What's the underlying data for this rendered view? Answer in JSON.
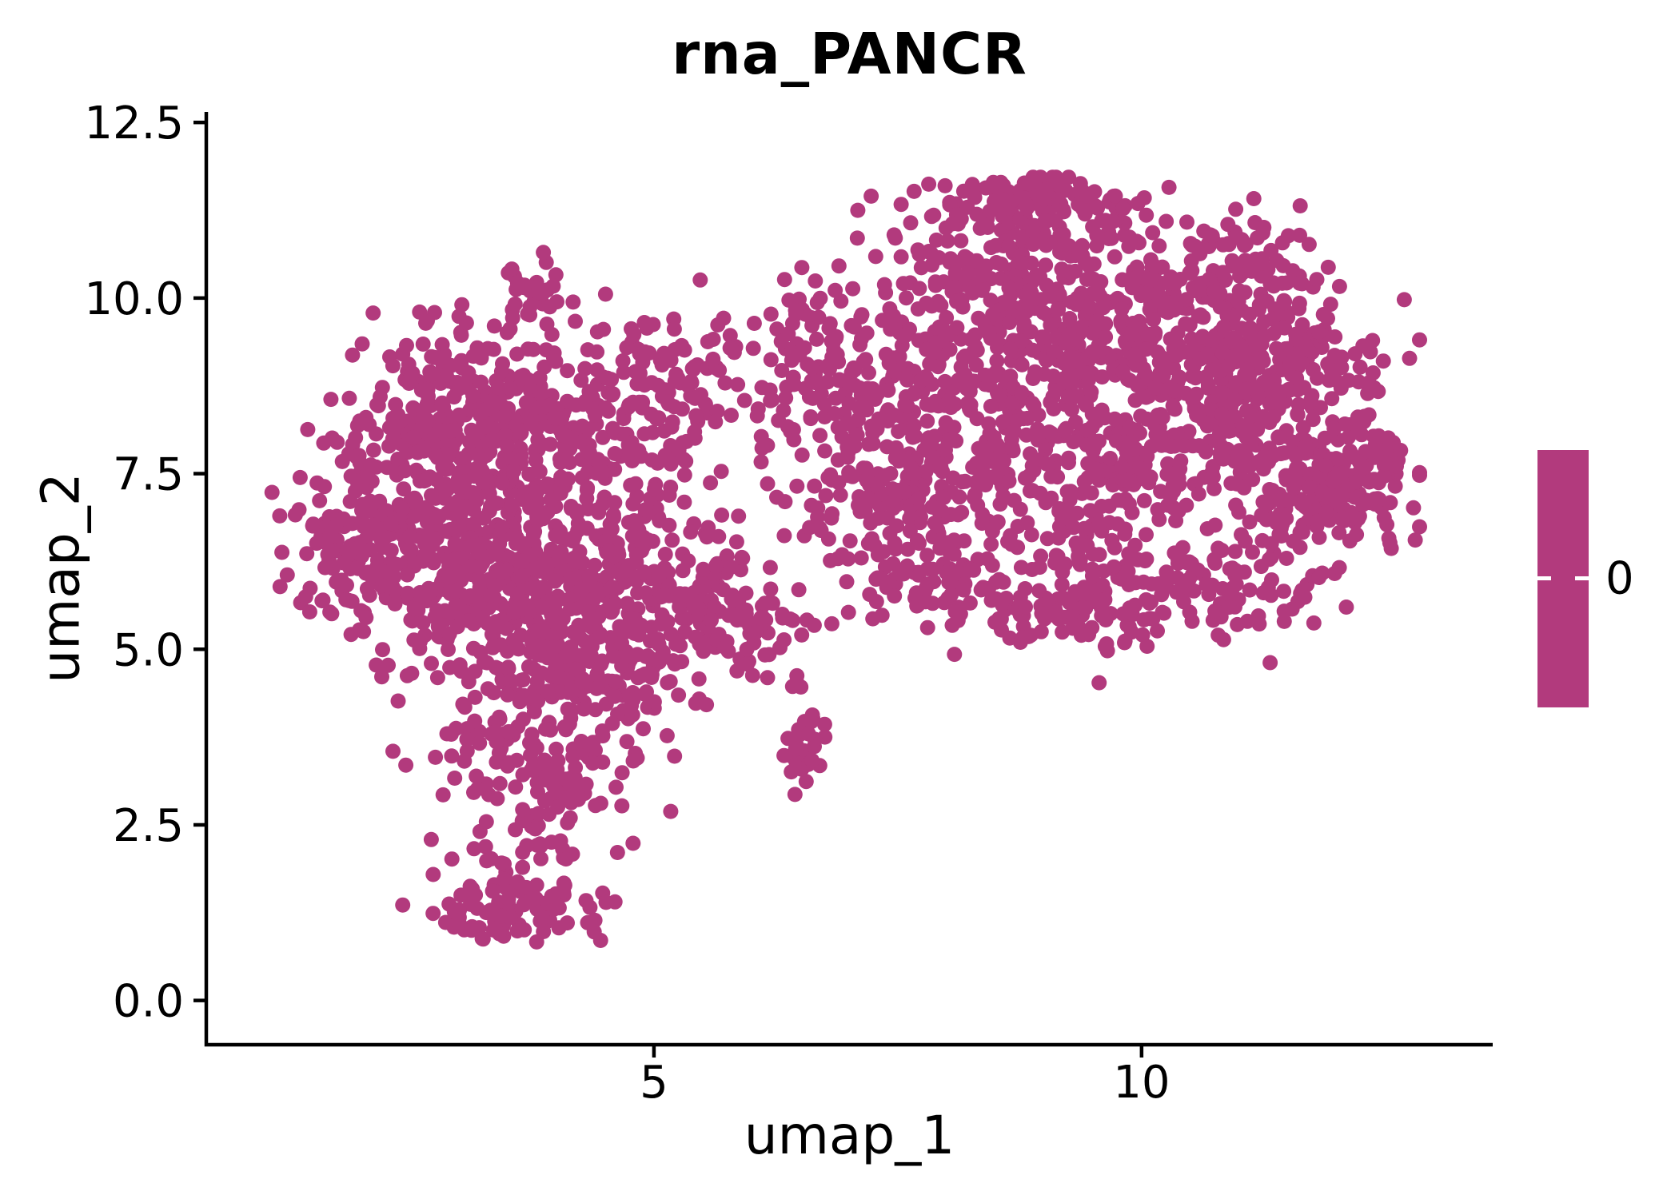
{
  "figure": {
    "title": "rna_PANCR",
    "background_color": "#FFFFFF",
    "text_color": "#000000"
  },
  "chart_data": {
    "type": "scatter",
    "title": "rna_PANCR",
    "xlabel": "umap_1",
    "ylabel": "umap_2",
    "xlim": [
      0.41,
      13.6
    ],
    "ylim": [
      -0.63,
      12.65
    ],
    "x_ticks": {
      "values": [
        5,
        10
      ],
      "labels": [
        "5",
        "10"
      ]
    },
    "y_ticks": {
      "values": [
        0,
        2.5,
        5,
        7.5,
        10,
        12.5
      ],
      "labels": [
        "0.0",
        "2.5",
        "5.0",
        "7.5",
        "10.0",
        "12.5"
      ]
    },
    "grid": false,
    "point_color": "#B23A7D",
    "point_radius_px": 9.5,
    "axis_color": "#000000",
    "n_points": 4085,
    "seed": 42,
    "clusters": [
      {
        "cx": 3.2,
        "cy": 8.6,
        "sx": 0.7,
        "sy": 0.6,
        "n": 230
      },
      {
        "cx": 2.55,
        "cy": 6.7,
        "sx": 0.65,
        "sy": 0.7,
        "n": 250
      },
      {
        "cx": 3.9,
        "cy": 7.7,
        "sx": 0.8,
        "sy": 0.75,
        "n": 240
      },
      {
        "cx": 4.5,
        "cy": 6.1,
        "sx": 0.7,
        "sy": 0.65,
        "n": 200
      },
      {
        "cx": 3.4,
        "cy": 5.7,
        "sx": 0.65,
        "sy": 0.6,
        "n": 220
      },
      {
        "cx": 4.35,
        "cy": 4.5,
        "sx": 0.6,
        "sy": 0.6,
        "n": 150
      },
      {
        "cx": 3.7,
        "cy": 3.5,
        "sx": 0.5,
        "sy": 0.55,
        "n": 120
      },
      {
        "cx": 4.9,
        "cy": 5.4,
        "sx": 0.7,
        "sy": 0.5,
        "n": 90
      },
      {
        "cx": 5.2,
        "cy": 8.9,
        "sx": 0.45,
        "sy": 0.55,
        "n": 90
      },
      {
        "cx": 3.75,
        "cy": 10.15,
        "sx": 0.16,
        "sy": 0.18,
        "n": 22
      },
      {
        "cx": 3.5,
        "cy": 1.3,
        "sx": 0.42,
        "sy": 0.24,
        "n": 90
      },
      {
        "cx": 3.9,
        "cy": 2.3,
        "sx": 0.35,
        "sy": 0.4,
        "n": 45
      },
      {
        "cx": 1.95,
        "cy": 6.5,
        "sx": 0.35,
        "sy": 0.5,
        "n": 60
      },
      {
        "cx": 5.6,
        "cy": 5.6,
        "sx": 0.35,
        "sy": 0.45,
        "n": 50
      },
      {
        "cx": 6.2,
        "cy": 5.5,
        "sx": 0.25,
        "sy": 0.3,
        "n": 14
      },
      {
        "cx": 6.55,
        "cy": 3.55,
        "sx": 0.1,
        "sy": 0.28,
        "n": 34
      },
      {
        "cx": 6.5,
        "cy": 4.4,
        "sx": 0.08,
        "sy": 0.12,
        "n": 4
      },
      {
        "cx": 6.7,
        "cy": 10.2,
        "sx": 0.2,
        "sy": 0.2,
        "n": 6
      },
      {
        "cx": 8.9,
        "cy": 11.35,
        "sx": 0.55,
        "sy": 0.2,
        "n": 110
      },
      {
        "cx": 8.6,
        "cy": 10.4,
        "sx": 0.7,
        "sy": 0.5,
        "n": 150
      },
      {
        "cx": 9.8,
        "cy": 9.6,
        "sx": 0.85,
        "sy": 0.65,
        "n": 280
      },
      {
        "cx": 8.3,
        "cy": 8.6,
        "sx": 0.8,
        "sy": 0.65,
        "n": 250
      },
      {
        "cx": 10.8,
        "cy": 8.5,
        "sx": 0.7,
        "sy": 0.65,
        "n": 220
      },
      {
        "cx": 9.4,
        "cy": 7.3,
        "sx": 0.8,
        "sy": 0.55,
        "n": 210
      },
      {
        "cx": 7.6,
        "cy": 7.0,
        "sx": 0.55,
        "sy": 0.65,
        "n": 150
      },
      {
        "cx": 10.4,
        "cy": 5.85,
        "sx": 0.7,
        "sy": 0.4,
        "n": 140
      },
      {
        "cx": 11.7,
        "cy": 7.4,
        "sx": 0.45,
        "sy": 0.55,
        "n": 130
      },
      {
        "cx": 12.25,
        "cy": 7.5,
        "sx": 0.28,
        "sy": 0.4,
        "n": 80
      },
      {
        "cx": 11.5,
        "cy": 9.3,
        "sx": 0.5,
        "sy": 0.5,
        "n": 110
      },
      {
        "cx": 10.9,
        "cy": 10.35,
        "sx": 0.45,
        "sy": 0.4,
        "n": 80
      },
      {
        "cx": 7.05,
        "cy": 9.1,
        "sx": 0.5,
        "sy": 0.75,
        "n": 90
      },
      {
        "cx": 6.4,
        "cy": 8.4,
        "sx": 0.35,
        "sy": 0.6,
        "n": 40
      },
      {
        "cx": 8.2,
        "cy": 5.8,
        "sx": 0.55,
        "sy": 0.35,
        "n": 80
      },
      {
        "cx": 9.3,
        "cy": 5.5,
        "sx": 0.4,
        "sy": 0.25,
        "n": 50
      }
    ],
    "legend": {
      "type": "colorbar",
      "position": "right",
      "label": "0",
      "color": "#B23A7D",
      "tick_color": "#FFFFFF"
    }
  }
}
